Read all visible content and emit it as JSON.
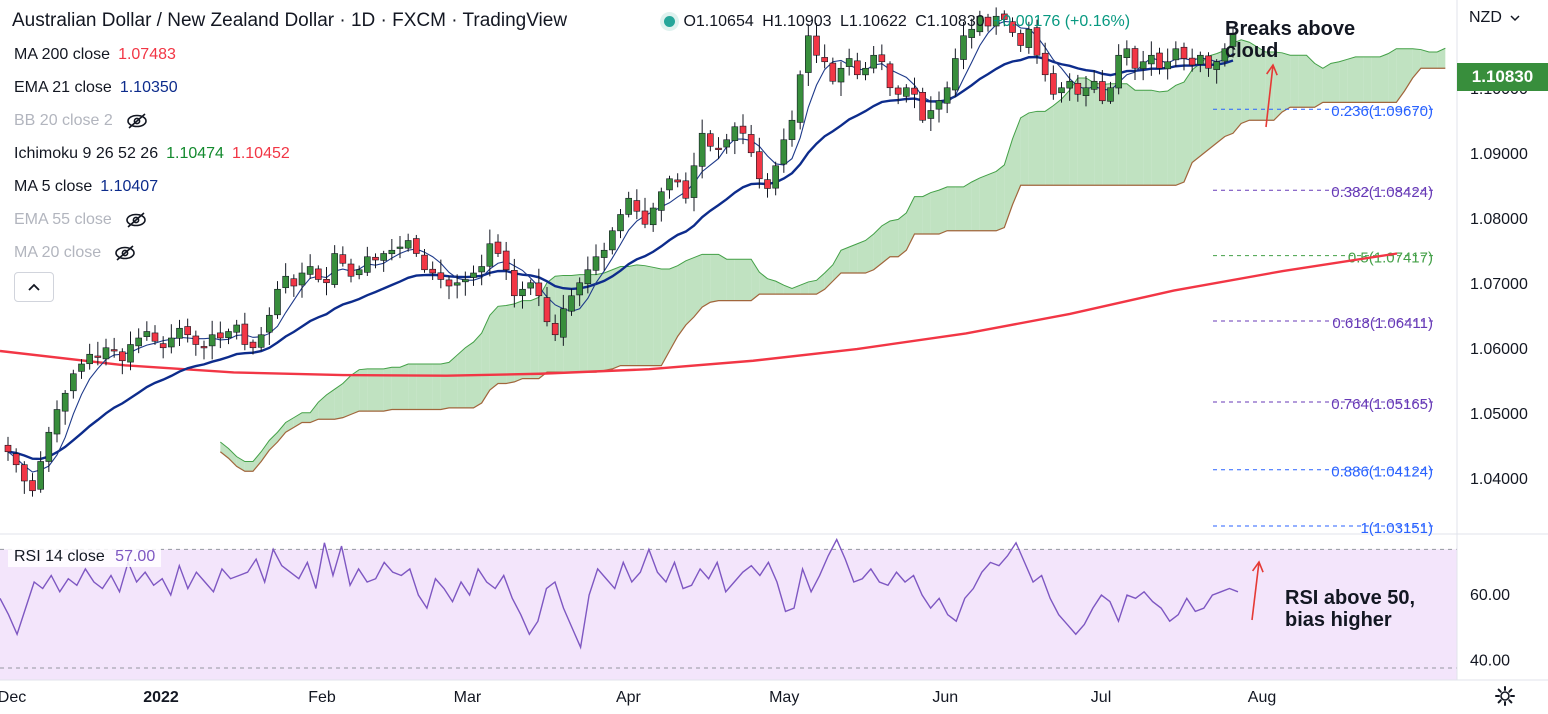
{
  "header": {
    "title": "Australian Dollar / New Zealand Dollar · 1D · FXCM · TradingView",
    "ohlc": {
      "open": "O1.10654",
      "high": "H1.10903",
      "low": "L1.10622",
      "close": "C1.10830",
      "change": "+0.00176 (+0.16%)"
    },
    "currency": "NZD"
  },
  "indicators": [
    {
      "name": "MA 200 close",
      "value": "1.07483",
      "color": "#f23645"
    },
    {
      "name": "EMA 21 close",
      "value": "1.10350",
      "color": "#0d2c8c"
    },
    {
      "name": "BB 20 close 2",
      "value": "",
      "hidden": true
    },
    {
      "name": "Ichimoku 9 26 52 26",
      "value": "1.10474",
      "value2": "1.10452",
      "color": "#138a2e",
      "color2": "#f23645"
    },
    {
      "name": "MA 5 close",
      "value": "1.10407",
      "color": "#0d2c8c"
    },
    {
      "name": "EMA 55 close",
      "value": "",
      "hidden": true
    },
    {
      "name": "MA 20 close",
      "value": "",
      "hidden": true
    }
  ],
  "rsi": {
    "label": "RSI 14 close",
    "value": "57.00",
    "ticks": [
      "60.00",
      "40.00"
    ]
  },
  "annotations": {
    "cloud": [
      "Breaks above",
      "cloud"
    ],
    "rsi": [
      "RSI above 50,",
      "bias higher"
    ]
  },
  "last_price": "1.10830",
  "chart_data": {
    "type": "candlestick",
    "instrument": "AUD/NZD",
    "timeframe": "1D",
    "x_ticks": [
      {
        "label": "Dec",
        "date": "2021-12-01"
      },
      {
        "label": "2022",
        "date": "2022-01-01"
      },
      {
        "label": "Feb",
        "date": "2022-02-01"
      },
      {
        "label": "Mar",
        "date": "2022-03-01"
      },
      {
        "label": "Apr",
        "date": "2022-04-01"
      },
      {
        "label": "May",
        "date": "2022-05-01"
      },
      {
        "label": "Jun",
        "date": "2022-06-01"
      },
      {
        "label": "Jul",
        "date": "2022-07-01"
      },
      {
        "label": "Aug",
        "date": "2022-08-01"
      }
    ],
    "y_ticks": [
      "1.10000",
      "1.09000",
      "1.08000",
      "1.07000",
      "1.06000",
      "1.05000",
      "1.04000"
    ],
    "y_tick_values": [
      1.1,
      1.09,
      1.08,
      1.07,
      1.06,
      1.05,
      1.04
    ],
    "ylim": [
      1.0315,
      1.1135
    ],
    "fibonacci": [
      {
        "label": "0.236(1.09670)",
        "value": 1.0967,
        "color": "#2962ff"
      },
      {
        "label": "0.382(1.08424)",
        "value": 1.08424,
        "color": "#673ab7"
      },
      {
        "label": "0.5(1.07417)",
        "value": 1.07417,
        "color": "#43a047"
      },
      {
        "label": "0.618(1.06411)",
        "value": 1.06411,
        "color": "#673ab7"
      },
      {
        "label": "0.764(1.05165)",
        "value": 1.05165,
        "color": "#673ab7"
      },
      {
        "label": "0.886(1.04124)",
        "value": 1.04124,
        "color": "#2962ff"
      },
      {
        "label": "1(1.03151)",
        "value": 1.03151,
        "color": "#2962ff"
      }
    ],
    "closes": [
      1.044,
      1.042,
      1.0395,
      1.038,
      1.0425,
      1.047,
      1.0505,
      1.053,
      1.056,
      1.0575,
      1.059,
      1.0585,
      1.06,
      1.0595,
      1.058,
      1.0605,
      1.0615,
      1.0625,
      1.061,
      1.06,
      1.0615,
      1.063,
      1.062,
      1.0605,
      1.06,
      1.062,
      1.0615,
      1.0625,
      1.0635,
      1.0605,
      1.06,
      1.062,
      1.065,
      1.069,
      1.071,
      1.0695,
      1.0715,
      1.0725,
      1.0705,
      1.07,
      1.0745,
      1.073,
      1.071,
      1.072,
      1.074,
      1.0735,
      1.0745,
      1.075,
      1.0755,
      1.0765,
      1.0745,
      1.072,
      1.0715,
      1.0705,
      1.0695,
      1.07,
      1.0705,
      1.0715,
      1.0725,
      1.076,
      1.0745,
      1.072,
      1.068,
      1.069,
      1.07,
      1.068,
      1.064,
      1.062,
      1.066,
      1.068,
      1.07,
      1.072,
      1.074,
      1.075,
      1.078,
      1.0805,
      1.083,
      1.081,
      1.079,
      1.0815,
      1.084,
      1.086,
      1.0855,
      1.083,
      1.088,
      1.093,
      1.091,
      1.0905,
      1.092,
      1.094,
      1.093,
      1.09,
      1.086,
      1.0845,
      1.088,
      1.092,
      1.095,
      1.102,
      1.108,
      1.105,
      1.104,
      1.101,
      1.103,
      1.1045,
      1.102,
      1.103,
      1.105,
      1.104,
      1.1,
      1.099,
      1.1,
      1.099,
      1.095,
      1.0965,
      1.098,
      1.1,
      1.1045,
      1.108,
      1.109,
      1.111,
      1.1095,
      1.111,
      1.1105,
      1.1085,
      1.1065,
      1.109,
      1.105,
      1.102,
      1.099,
      1.1,
      1.101,
      1.099,
      1.1,
      1.101,
      1.098,
      1.1,
      1.105,
      1.106,
      1.103,
      1.104,
      1.105,
      1.103,
      1.104,
      1.106,
      1.1045,
      1.1035,
      1.105,
      1.103,
      1.104,
      1.106,
      1.1083
    ],
    "start_date": "2021-12-01",
    "ma200": [
      1.0595,
      1.0573,
      1.0562,
      1.0558,
      1.0557,
      1.056,
      1.0567,
      1.058,
      1.0598,
      1.0622,
      1.0652,
      1.0688,
      1.0718,
      1.0745
    ],
    "ma200_dates": [
      "2021-12-01",
      "2021-12-25",
      "2022-01-15",
      "2022-02-05",
      "2022-02-25",
      "2022-03-15",
      "2022-04-05",
      "2022-04-25",
      "2022-05-15",
      "2022-06-05",
      "2022-06-25",
      "2022-07-15",
      "2022-08-05",
      "2022-08-27"
    ],
    "rsi_values": [
      55,
      50,
      44,
      52,
      60,
      58,
      62,
      57,
      61,
      59,
      64,
      60,
      58,
      62,
      57,
      66,
      60,
      63,
      59,
      61,
      56,
      65,
      58,
      63,
      60,
      57,
      64,
      61,
      62,
      63,
      67,
      60,
      70,
      65,
      63,
      61,
      66,
      58,
      72,
      62,
      71,
      59,
      64,
      60,
      61,
      66,
      63,
      62,
      64,
      56,
      52,
      61,
      58,
      54,
      60,
      56,
      64,
      60,
      58,
      62,
      55,
      50,
      44,
      48,
      58,
      60,
      52,
      46,
      40,
      56,
      64,
      61,
      58,
      66,
      60,
      63,
      70,
      63,
      60,
      66,
      58,
      59,
      64,
      61,
      66,
      57,
      60,
      63,
      65,
      62,
      66,
      60,
      51,
      52,
      64,
      57,
      62,
      68,
      73,
      67,
      60,
      61,
      64,
      60,
      59,
      63,
      60,
      62,
      56,
      52,
      55,
      50,
      48,
      55,
      58,
      63,
      66,
      65,
      68,
      72,
      66,
      60,
      62,
      55,
      50,
      47,
      44,
      47,
      52,
      56,
      54,
      48,
      56,
      55,
      57,
      54,
      52,
      48,
      50,
      55,
      51,
      52,
      56,
      57,
      58,
      57
    ],
    "rsi_ylim": [
      30,
      75
    ]
  }
}
